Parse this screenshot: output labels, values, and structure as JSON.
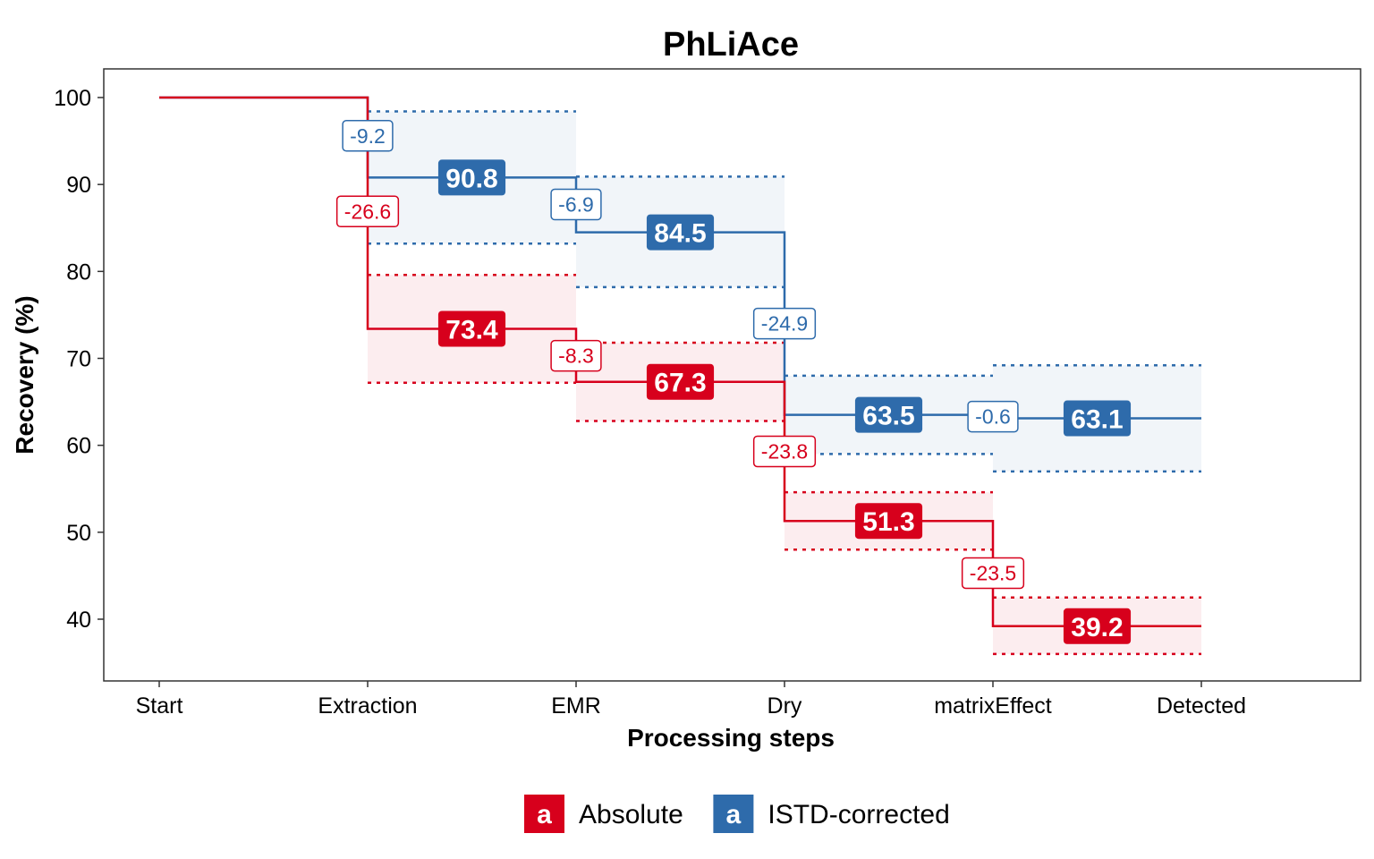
{
  "chart_data": {
    "type": "line",
    "title": "PhLiAce",
    "xlabel": "Processing steps",
    "ylabel": "Recovery (%)",
    "categories": [
      "Start",
      "Extraction",
      "EMR",
      "Dry",
      "matrixEffect",
      "Detected"
    ],
    "ylim": [
      33,
      103
    ],
    "yticks": [
      40,
      50,
      60,
      70,
      80,
      90,
      100
    ],
    "legend_position": "bottom",
    "grid": false,
    "series": [
      {
        "name": "ISTD-corrected",
        "color": "#2e6bab",
        "band_color": "#f0f4f9",
        "levels": [
          100,
          90.8,
          84.5,
          63.5,
          63.1
        ],
        "value_labels": [
          "90.8",
          "84.5",
          "63.5",
          "63.1"
        ],
        "bands": [
          {
            "lower": 83.2,
            "upper": 98.4
          },
          {
            "lower": 78.2,
            "upper": 90.9
          },
          {
            "lower": 59.0,
            "upper": 68.0
          },
          {
            "lower": 57.0,
            "upper": 69.2
          }
        ],
        "changes": [
          {
            "step": "Extraction",
            "label": "-9.2",
            "y": 95.6
          },
          {
            "step": "EMR",
            "label": "-6.9",
            "y": 87.7
          },
          {
            "step": "Dry",
            "label": "-24.9",
            "y": 74.0
          },
          {
            "step": "matrixEffect",
            "label": "-0.6",
            "y": 63.3
          }
        ]
      },
      {
        "name": "Absolute",
        "color": "#d7001c",
        "band_color": "#fcecee",
        "levels": [
          100,
          73.4,
          67.3,
          51.3,
          39.2
        ],
        "value_labels": [
          "73.4",
          "67.3",
          "51.3",
          "39.2"
        ],
        "bands": [
          {
            "lower": 67.2,
            "upper": 79.6
          },
          {
            "lower": 62.8,
            "upper": 71.8
          },
          {
            "lower": 48.0,
            "upper": 54.6
          },
          {
            "lower": 36.0,
            "upper": 42.5
          }
        ],
        "changes": [
          {
            "step": "Extraction",
            "label": "-26.6",
            "y": 86.9
          },
          {
            "step": "EMR",
            "label": "-8.3",
            "y": 70.3
          },
          {
            "step": "Dry",
            "label": "-23.8",
            "y": 59.3
          },
          {
            "step": "matrixEffect",
            "label": "-23.5",
            "y": 45.3
          }
        ]
      }
    ],
    "legend": [
      {
        "key": "a",
        "label": "Absolute",
        "color": "#d7001c"
      },
      {
        "key": "a",
        "label": "ISTD-corrected",
        "color": "#2e6bab"
      }
    ]
  }
}
